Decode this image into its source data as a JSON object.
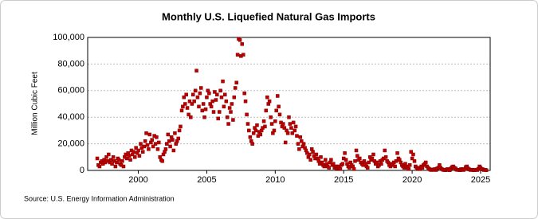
{
  "chart_data": {
    "type": "scatter",
    "title": "Monthly U.S. Liquefied Natural Gas Imports",
    "ylabel": "Million Cubic Feet",
    "source": "Source: U.S. Energy Information Administration",
    "color": "#c00000",
    "grid": true,
    "xlim": [
      1996.3,
      2025.7
    ],
    "xticks": [
      2000,
      2005,
      2010,
      2015,
      2020,
      2025
    ],
    "ylim": [
      0,
      100000
    ],
    "yticks": [
      0,
      {
        "value": 20000,
        "label": "20,000"
      },
      {
        "value": 40000,
        "label": "40,000"
      },
      {
        "value": 60000,
        "label": "60,000"
      },
      {
        "value": 80000,
        "label": "80,000"
      },
      {
        "value": 100000,
        "label": "100,000"
      }
    ],
    "x": [
      1997.0,
      1997.08,
      1997.17,
      1997.25,
      1997.33,
      1997.42,
      1997.5,
      1997.58,
      1997.67,
      1997.75,
      1997.83,
      1997.92,
      1998.0,
      1998.08,
      1998.17,
      1998.25,
      1998.33,
      1998.42,
      1998.5,
      1998.58,
      1998.67,
      1998.75,
      1998.83,
      1998.92,
      1999.0,
      1999.08,
      1999.17,
      1999.25,
      1999.33,
      1999.42,
      1999.5,
      1999.58,
      1999.67,
      1999.75,
      1999.83,
      1999.92,
      2000.0,
      2000.08,
      2000.17,
      2000.25,
      2000.33,
      2000.42,
      2000.5,
      2000.58,
      2000.67,
      2000.75,
      2000.83,
      2000.92,
      2001.0,
      2001.08,
      2001.17,
      2001.25,
      2001.33,
      2001.42,
      2001.5,
      2001.58,
      2001.67,
      2001.75,
      2001.83,
      2001.92,
      2002.0,
      2002.08,
      2002.17,
      2002.25,
      2002.33,
      2002.42,
      2002.5,
      2002.58,
      2002.67,
      2002.75,
      2002.83,
      2002.92,
      2003.0,
      2003.08,
      2003.17,
      2003.25,
      2003.33,
      2003.42,
      2003.5,
      2003.58,
      2003.67,
      2003.75,
      2003.83,
      2003.92,
      2004.0,
      2004.08,
      2004.17,
      2004.25,
      2004.33,
      2004.42,
      2004.5,
      2004.58,
      2004.67,
      2004.75,
      2004.83,
      2004.92,
      2005.0,
      2005.08,
      2005.17,
      2005.25,
      2005.33,
      2005.42,
      2005.5,
      2005.58,
      2005.67,
      2005.75,
      2005.83,
      2005.92,
      2006.0,
      2006.08,
      2006.17,
      2006.25,
      2006.33,
      2006.42,
      2006.5,
      2006.58,
      2006.67,
      2006.75,
      2006.83,
      2006.92,
      2007.0,
      2007.08,
      2007.17,
      2007.25,
      2007.33,
      2007.42,
      2007.5,
      2007.58,
      2007.67,
      2007.75,
      2007.83,
      2007.92,
      2008.0,
      2008.08,
      2008.17,
      2008.25,
      2008.33,
      2008.42,
      2008.5,
      2008.58,
      2008.67,
      2008.75,
      2008.83,
      2008.92,
      2009.0,
      2009.08,
      2009.17,
      2009.25,
      2009.33,
      2009.42,
      2009.5,
      2009.58,
      2009.67,
      2009.75,
      2009.83,
      2009.92,
      2010.0,
      2010.08,
      2010.17,
      2010.25,
      2010.33,
      2010.42,
      2010.5,
      2010.58,
      2010.67,
      2010.75,
      2010.83,
      2010.92,
      2011.0,
      2011.08,
      2011.17,
      2011.25,
      2011.33,
      2011.42,
      2011.5,
      2011.58,
      2011.67,
      2011.75,
      2011.83,
      2011.92,
      2012.0,
      2012.08,
      2012.17,
      2012.25,
      2012.33,
      2012.42,
      2012.5,
      2012.58,
      2012.67,
      2012.75,
      2012.83,
      2012.92,
      2013.0,
      2013.08,
      2013.17,
      2013.25,
      2013.33,
      2013.42,
      2013.5,
      2013.58,
      2013.67,
      2013.75,
      2013.83,
      2013.92,
      2014.0,
      2014.08,
      2014.17,
      2014.25,
      2014.33,
      2014.42,
      2014.5,
      2014.58,
      2014.67,
      2014.75,
      2014.83,
      2014.92,
      2015.0,
      2015.08,
      2015.17,
      2015.25,
      2015.33,
      2015.42,
      2015.5,
      2015.58,
      2015.67,
      2015.75,
      2015.83,
      2015.92,
      2016.0,
      2016.08,
      2016.17,
      2016.25,
      2016.33,
      2016.42,
      2016.5,
      2016.58,
      2016.67,
      2016.75,
      2016.83,
      2016.92,
      2017.0,
      2017.08,
      2017.17,
      2017.25,
      2017.33,
      2017.42,
      2017.5,
      2017.58,
      2017.67,
      2017.75,
      2017.83,
      2017.92,
      2018.0,
      2018.08,
      2018.17,
      2018.25,
      2018.33,
      2018.42,
      2018.5,
      2018.58,
      2018.67,
      2018.75,
      2018.83,
      2018.92,
      2019.0,
      2019.08,
      2019.17,
      2019.25,
      2019.33,
      2019.42,
      2019.5,
      2019.58,
      2019.67,
      2019.75,
      2019.83,
      2019.92,
      2020.0,
      2020.08,
      2020.17,
      2020.25,
      2020.33,
      2020.42,
      2020.5,
      2020.58,
      2020.67,
      2020.75,
      2020.83,
      2020.92,
      2021.0,
      2021.08,
      2021.17,
      2021.25,
      2021.33,
      2021.42,
      2021.5,
      2021.58,
      2021.67,
      2021.75,
      2021.83,
      2021.92,
      2022.0,
      2022.08,
      2022.17,
      2022.25,
      2022.33,
      2022.42,
      2022.5,
      2022.58,
      2022.67,
      2022.75,
      2022.83,
      2022.92,
      2023.0,
      2023.08,
      2023.17,
      2023.25,
      2023.33,
      2023.42,
      2023.5,
      2023.58,
      2023.67,
      2023.75,
      2023.83,
      2023.92,
      2024.0,
      2024.08,
      2024.17,
      2024.25,
      2024.33,
      2024.42,
      2024.5,
      2024.58,
      2024.67,
      2024.75,
      2024.83,
      2024.92,
      2025.0,
      2025.08,
      2025.17,
      2025.25,
      2025.33,
      2025.42
    ],
    "values": [
      9000,
      4000,
      3000,
      6000,
      7000,
      5000,
      8000,
      6000,
      10000,
      7000,
      12000,
      6000,
      8000,
      5000,
      10000,
      7000,
      3000,
      6000,
      9000,
      8000,
      5000,
      4000,
      7000,
      3000,
      10000,
      12000,
      9000,
      13000,
      11000,
      8000,
      15000,
      12000,
      14000,
      10000,
      17000,
      13000,
      15000,
      11000,
      20000,
      17000,
      14000,
      18000,
      22000,
      28000,
      19000,
      16000,
      27000,
      21000,
      23000,
      18000,
      26000,
      20000,
      25000,
      16000,
      21000,
      10000,
      8000,
      7000,
      12000,
      14000,
      16000,
      20000,
      27000,
      22000,
      18000,
      25000,
      23000,
      15000,
      28000,
      20000,
      22000,
      24000,
      30000,
      33000,
      45000,
      48000,
      55000,
      50000,
      57000,
      47000,
      42000,
      52000,
      40000,
      50000,
      57000,
      52000,
      60000,
      75000,
      55000,
      48000,
      58000,
      62000,
      45000,
      50000,
      40000,
      46000,
      55000,
      60000,
      58000,
      50000,
      48000,
      52000,
      44000,
      59000,
      53000,
      57000,
      39000,
      44000,
      60000,
      55000,
      67000,
      48000,
      57000,
      52000,
      40000,
      35000,
      47000,
      44000,
      50000,
      38000,
      55000,
      62000,
      66000,
      87000,
      99000,
      98000,
      86000,
      95000,
      87000,
      58000,
      52000,
      42000,
      35000,
      30000,
      25000,
      22000,
      20000,
      28000,
      32000,
      30000,
      34000,
      26000,
      29000,
      27000,
      30000,
      32000,
      37000,
      33000,
      45000,
      55000,
      50000,
      52000,
      40000,
      35000,
      28000,
      30000,
      37000,
      45000,
      56000,
      48000,
      42000,
      36000,
      33000,
      35000,
      32000,
      21000,
      30000,
      28000,
      40000,
      35000,
      32000,
      28000,
      36000,
      30000,
      33000,
      26000,
      20000,
      16000,
      25000,
      22000,
      18000,
      20000,
      17000,
      15000,
      13000,
      10000,
      12000,
      8000,
      16000,
      14000,
      11000,
      9000,
      12000,
      9000,
      7000,
      5000,
      10000,
      6000,
      4000,
      3000,
      8000,
      5000,
      3000,
      2000,
      6000,
      8000,
      4000,
      5000,
      2000,
      3000,
      1500,
      3000,
      2000,
      1000,
      4000,
      5000,
      9000,
      13000,
      8000,
      5000,
      3000,
      2000,
      6000,
      4000,
      3000,
      1000,
      7000,
      15000,
      11000,
      8000,
      9000,
      6000,
      5000,
      4000,
      7000,
      5000,
      3000,
      2000,
      6000,
      10000,
      8000,
      9000,
      12000,
      7000,
      5000,
      6000,
      3000,
      4000,
      7000,
      5000,
      8000,
      9000,
      15000,
      10000,
      7000,
      6000,
      4000,
      3000,
      5000,
      4000,
      6000,
      3000,
      7000,
      13000,
      9000,
      8000,
      6000,
      4000,
      3000,
      2000,
      5000,
      3000,
      2000,
      1000,
      4000,
      14000,
      9000,
      12000,
      7000,
      3000,
      2000,
      1000,
      2000,
      1000,
      3000,
      2000,
      4000,
      5000,
      6000,
      3000,
      2000,
      1000,
      500,
      300,
      700,
      400,
      1000,
      300,
      1500,
      2000,
      4000,
      2000,
      1000,
      500,
      300,
      200,
      600,
      1000,
      300,
      200,
      1500,
      2500,
      3000,
      2000,
      1500,
      500,
      400,
      300,
      200,
      1000,
      500,
      300,
      1000,
      2500,
      3000,
      1500,
      800,
      400,
      300,
      500,
      200,
      300,
      400,
      300,
      1200,
      3000,
      2000,
      1000,
      800,
      300,
      400,
      200
    ]
  }
}
